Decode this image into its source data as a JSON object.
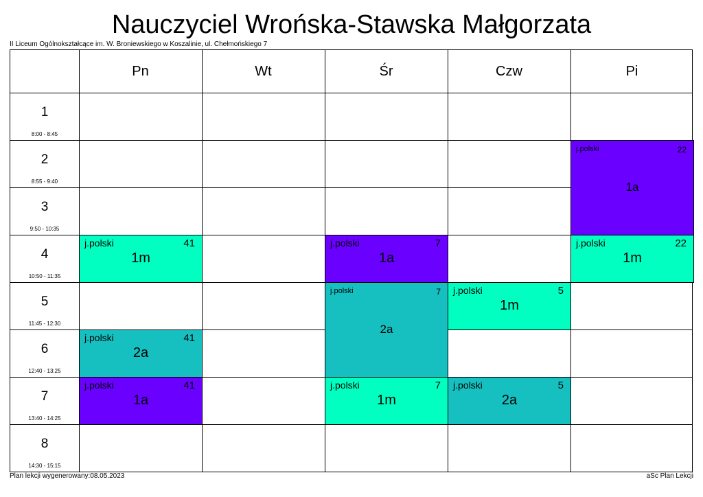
{
  "title": "Nauczyciel Wrońska-Stawska Małgorzata",
  "school": "II Liceum Ogólnokształcące im. W. Broniewskiego w Koszalinie, ul. Chełmońskiego 7",
  "footer_left": "Plan lekcji wygenerowany:08.05.2023",
  "footer_right": "aSc Plan Lekcji",
  "days": [
    "Pn",
    "Wt",
    "Śr",
    "Czw",
    "Pi"
  ],
  "periods": [
    {
      "num": "1",
      "time": "8:00 - 8:45"
    },
    {
      "num": "2",
      "time": "8:55 - 9:40"
    },
    {
      "num": "3",
      "time": "9:50 - 10:35"
    },
    {
      "num": "4",
      "time": "10:50 - 11:35"
    },
    {
      "num": "5",
      "time": "11:45 - 12:30"
    },
    {
      "num": "6",
      "time": "12:40 - 13:25"
    },
    {
      "num": "7",
      "time": "13:40 - 14:25"
    },
    {
      "num": "8",
      "time": "14:30 - 15:15"
    }
  ],
  "colors": {
    "1a": "#6a00ff",
    "1m": "#00ffc0",
    "2a": "#16c0c0"
  },
  "lessons": [
    {
      "day": 4,
      "period": 1,
      "span": 2,
      "subject": "j.polski",
      "room": "22",
      "class": "1a"
    },
    {
      "day": 0,
      "period": 3,
      "span": 1,
      "subject": "j.polski",
      "room": "41",
      "class": "1m"
    },
    {
      "day": 2,
      "period": 3,
      "span": 1,
      "subject": "j.polski",
      "room": "7",
      "class": "1a"
    },
    {
      "day": 4,
      "period": 3,
      "span": 1,
      "subject": "j.polski",
      "room": "22",
      "class": "1m"
    },
    {
      "day": 2,
      "period": 4,
      "span": 2,
      "subject": "j.polski",
      "room": "7",
      "class": "2a"
    },
    {
      "day": 3,
      "period": 4,
      "span": 1,
      "subject": "j.polski",
      "room": "5",
      "class": "1m"
    },
    {
      "day": 0,
      "period": 5,
      "span": 1,
      "subject": "j.polski",
      "room": "41",
      "class": "2a"
    },
    {
      "day": 0,
      "period": 6,
      "span": 1,
      "subject": "j.polski",
      "room": "41",
      "class": "1a"
    },
    {
      "day": 2,
      "period": 6,
      "span": 1,
      "subject": "j.polski",
      "room": "7",
      "class": "1m"
    },
    {
      "day": 3,
      "period": 6,
      "span": 1,
      "subject": "j.polski",
      "room": "5",
      "class": "2a"
    }
  ]
}
